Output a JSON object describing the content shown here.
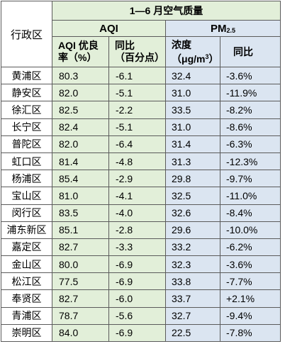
{
  "table": {
    "title": "1—6 月空气质量",
    "region_header": "行政区",
    "aqi_group": "AQI",
    "pm_group_main": "PM",
    "pm_group_sub": "2.5",
    "aqi_rate_header_line1": "AQI 优良",
    "aqi_rate_header_line2": "率（%）",
    "aqi_yoy_header_line1": "同比",
    "aqi_yoy_header_line2": "（百分点）",
    "pm_conc_header_line1": "浓度",
    "pm_conc_header_line2_prefix": "（μg/m",
    "pm_conc_header_line2_sup": "3",
    "pm_conc_header_line2_suffix": "）",
    "pm_yoy_header": "同比",
    "rows": [
      {
        "region": "黄浦区",
        "aqi": "80.3",
        "aqi_yoy": "-6.1",
        "pm": "32.4",
        "pm_yoy": "-3.6%"
      },
      {
        "region": "静安区",
        "aqi": "82.0",
        "aqi_yoy": "-5.1",
        "pm": "31.0",
        "pm_yoy": "-11.9%"
      },
      {
        "region": "徐汇区",
        "aqi": "82.5",
        "aqi_yoy": "-2.2",
        "pm": "33.5",
        "pm_yoy": "-8.2%"
      },
      {
        "region": "长宁区",
        "aqi": "82.4",
        "aqi_yoy": "-5.1",
        "pm": "31.0",
        "pm_yoy": "-8.6%"
      },
      {
        "region": "普陀区",
        "aqi": "82.0",
        "aqi_yoy": "-6.4",
        "pm": "31.4",
        "pm_yoy": "-6.3%"
      },
      {
        "region": "虹口区",
        "aqi": "81.4",
        "aqi_yoy": "-4.8",
        "pm": "31.3",
        "pm_yoy": "-12.3%"
      },
      {
        "region": "杨浦区",
        "aqi": "85.4",
        "aqi_yoy": "-2.9",
        "pm": "29.8",
        "pm_yoy": "-9.7%"
      },
      {
        "region": "宝山区",
        "aqi": "81.0",
        "aqi_yoy": "-4.1",
        "pm": "32.5",
        "pm_yoy": "-11.0%"
      },
      {
        "region": "闵行区",
        "aqi": "83.5",
        "aqi_yoy": "-4.0",
        "pm": "32.6",
        "pm_yoy": "-8.4%"
      },
      {
        "region": "浦东新区",
        "aqi": "85.1",
        "aqi_yoy": "-2.8",
        "pm": "29.6",
        "pm_yoy": "-10.0%"
      },
      {
        "region": "嘉定区",
        "aqi": "82.7",
        "aqi_yoy": "-3.3",
        "pm": "33.2",
        "pm_yoy": "-6.2%"
      },
      {
        "region": "金山区",
        "aqi": "80.0",
        "aqi_yoy": "-6.9",
        "pm": "32.3",
        "pm_yoy": "-3.6%"
      },
      {
        "region": "松江区",
        "aqi": "77.5",
        "aqi_yoy": "-6.9",
        "pm": "33.8",
        "pm_yoy": "-7.7%"
      },
      {
        "region": "奉贤区",
        "aqi": "82.7",
        "aqi_yoy": "-6.0",
        "pm": "33.7",
        "pm_yoy": "+2.1%"
      },
      {
        "region": "青浦区",
        "aqi": "78.7",
        "aqi_yoy": "-5.6",
        "pm": "32.7",
        "pm_yoy": "-9.4%"
      },
      {
        "region": "崇明区",
        "aqi": "84.0",
        "aqi_yoy": "-6.9",
        "pm": "22.5",
        "pm_yoy": "-7.8%"
      }
    ]
  },
  "colors": {
    "aqi_fill": "#e2efd9",
    "pm_fill": "#dbe5f1",
    "border": "#5b5b5b"
  }
}
